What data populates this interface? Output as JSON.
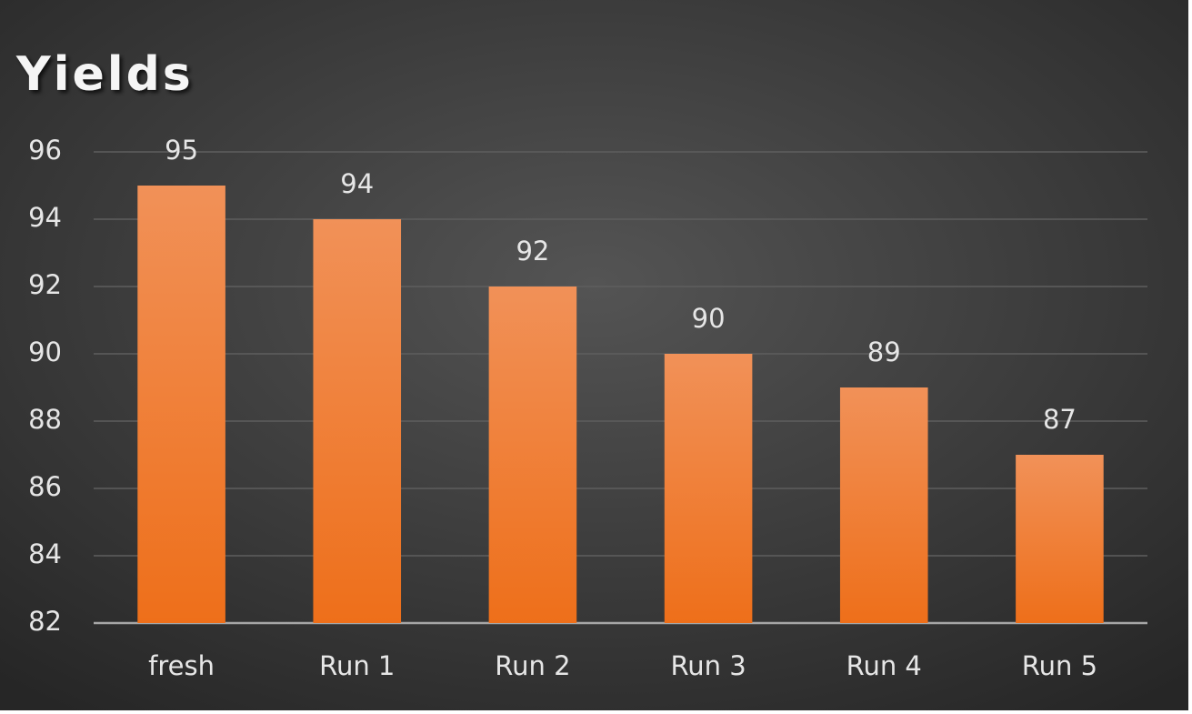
{
  "chart_data": {
    "type": "bar",
    "title": "Yields",
    "categories": [
      "fresh",
      "Run 1",
      "Run 2",
      "Run 3",
      "Run 4",
      "Run 5"
    ],
    "values": [
      95,
      94,
      92,
      90,
      89,
      87
    ],
    "color": "#f07e26",
    "ylim": [
      82,
      96
    ],
    "yticks": [
      82,
      84,
      86,
      88,
      90,
      92,
      94,
      96
    ],
    "grid": true
  }
}
